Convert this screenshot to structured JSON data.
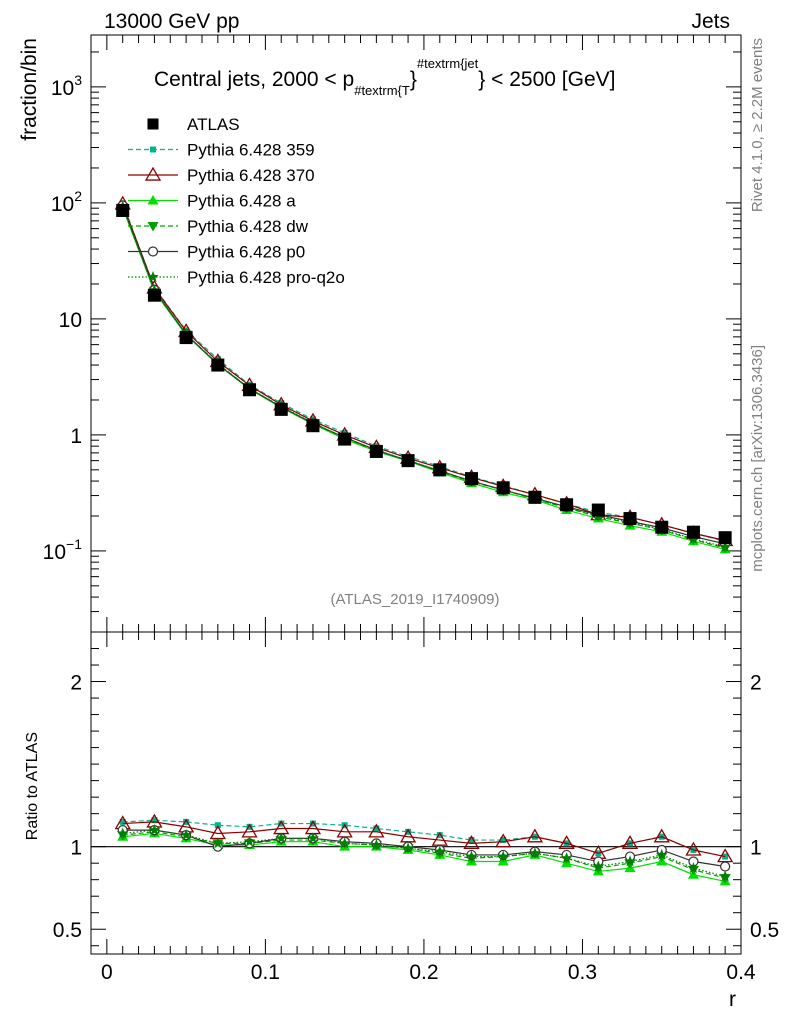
{
  "header": {
    "left": "13000 GeV pp",
    "right": "Jets"
  },
  "side_text": {
    "rivet": "Rivet 4.1.0, ≥ 2.2M events",
    "mcplots": "mcplots.cern.ch [arXiv:1306.3436]"
  },
  "analysis_id": "(ATLAS_2019_I1740909)",
  "colors": {
    "atlas": "#000000",
    "p359": "#00b58b",
    "p370": "#8b0000",
    "pa": "#00e000",
    "pdw": "#00a000",
    "pp0": "#333333",
    "pq2o": "#008000"
  },
  "chart_data": [
    {
      "type": "line",
      "title_parts": {
        "main": "Central jets, 2000 < p",
        "sub": "#textrm{T",
        "sup": "#textrm{jet",
        "post": "} < 2500 [GeV]"
      },
      "brace": "}",
      "xlabel": "r",
      "ylabel": "fraction/bin",
      "yscale": "log",
      "xlim": [
        -0.01,
        0.4
      ],
      "ylim": [
        0.02,
        2800
      ],
      "yticks": [
        {
          "v": 1000,
          "b": "10",
          "e": "3"
        },
        {
          "v": 100,
          "b": "10",
          "e": "2"
        },
        {
          "v": 10,
          "b": "10",
          "e": ""
        },
        {
          "v": 1,
          "b": "1",
          "e": ""
        },
        {
          "v": 0.1,
          "b": "10",
          "e": "−1"
        }
      ],
      "x": [
        0.01,
        0.03,
        0.05,
        0.07,
        0.09,
        0.11,
        0.13,
        0.15,
        0.17,
        0.19,
        0.21,
        0.23,
        0.25,
        0.27,
        0.29,
        0.31,
        0.33,
        0.35,
        0.37,
        0.39
      ],
      "series": [
        {
          "key": "atlas",
          "name": "ATLAS",
          "values": [
            86,
            16,
            6.9,
            4.0,
            2.45,
            1.66,
            1.2,
            0.92,
            0.72,
            0.6,
            0.5,
            0.42,
            0.35,
            0.29,
            0.25,
            0.225,
            0.19,
            0.16,
            0.145,
            0.13
          ]
        },
        {
          "key": "p359",
          "name": "Pythia 6.428 359",
          "values": [
            99,
            18.6,
            7.95,
            4.5,
            2.7,
            1.88,
            1.36,
            1.04,
            0.8,
            0.65,
            0.535,
            0.435,
            0.365,
            0.305,
            0.255,
            0.215,
            0.195,
            0.168,
            0.142,
            0.121
          ]
        },
        {
          "key": "p370",
          "name": "Pythia 6.428 370",
          "values": [
            98,
            18.5,
            7.8,
            4.3,
            2.67,
            1.82,
            1.32,
            1.0,
            0.78,
            0.63,
            0.52,
            0.43,
            0.36,
            0.305,
            0.255,
            0.205,
            0.195,
            0.168,
            0.142,
            0.123
          ]
        },
        {
          "key": "pa",
          "name": "Pythia 6.428 a",
          "values": [
            91,
            17.2,
            7.25,
            4.05,
            2.48,
            1.72,
            1.24,
            0.92,
            0.72,
            0.595,
            0.475,
            0.385,
            0.32,
            0.275,
            0.225,
            0.19,
            0.165,
            0.146,
            0.121,
            0.103
          ]
        },
        {
          "key": "pdw",
          "name": "Pythia 6.428 dw",
          "values": [
            92,
            17.4,
            7.35,
            4.1,
            2.51,
            1.74,
            1.26,
            0.94,
            0.73,
            0.6,
            0.485,
            0.395,
            0.335,
            0.28,
            0.235,
            0.197,
            0.173,
            0.152,
            0.125,
            0.106
          ]
        },
        {
          "key": "pp0",
          "name": "Pythia 6.428 p0",
          "values": [
            95,
            17.8,
            7.35,
            4.05,
            2.5,
            1.74,
            1.26,
            0.95,
            0.74,
            0.6,
            0.49,
            0.4,
            0.335,
            0.285,
            0.24,
            0.205,
            0.18,
            0.158,
            0.133,
            0.115
          ]
        },
        {
          "key": "pq2o",
          "name": "Pythia 6.428 pro-q2o",
          "values": [
            93,
            17.6,
            7.4,
            4.1,
            2.52,
            1.76,
            1.27,
            0.95,
            0.74,
            0.605,
            0.49,
            0.4,
            0.337,
            0.282,
            0.237,
            0.2,
            0.176,
            0.153,
            0.127,
            0.108
          ]
        }
      ]
    },
    {
      "type": "line",
      "ylabel": "Ratio to ATLAS",
      "xlabel": "r",
      "ylim": [
        0.35,
        2.3
      ],
      "yticks": [
        {
          "v": 0.5,
          "label": "0.5"
        },
        {
          "v": 1,
          "label": "1"
        },
        {
          "v": 2,
          "label": "2"
        }
      ],
      "xticks": [
        {
          "v": 0,
          "label": "0"
        },
        {
          "v": 0.1,
          "label": "0.1"
        },
        {
          "v": 0.2,
          "label": "0.2"
        },
        {
          "v": 0.3,
          "label": "0.3"
        },
        {
          "v": 0.4,
          "label": "0.4"
        }
      ],
      "x": [
        0.01,
        0.03,
        0.05,
        0.07,
        0.09,
        0.11,
        0.13,
        0.15,
        0.17,
        0.19,
        0.21,
        0.23,
        0.25,
        0.27,
        0.29,
        0.31,
        0.33,
        0.35,
        0.37,
        0.39
      ],
      "series": [
        {
          "key": "p359",
          "name": "Pythia 6.428 359",
          "values": [
            1.15,
            1.16,
            1.15,
            1.13,
            1.12,
            1.14,
            1.14,
            1.13,
            1.11,
            1.09,
            1.07,
            1.04,
            1.04,
            1.06,
            1.02,
            0.96,
            1.02,
            1.06,
            0.98,
            0.94
          ]
        },
        {
          "key": "p370",
          "name": "Pythia 6.428 370",
          "values": [
            1.14,
            1.15,
            1.12,
            1.08,
            1.09,
            1.11,
            1.11,
            1.09,
            1.09,
            1.06,
            1.04,
            1.02,
            1.03,
            1.06,
            1.02,
            0.96,
            1.02,
            1.06,
            0.98,
            0.94
          ]
        },
        {
          "key": "pa",
          "name": "Pythia 6.428 a",
          "values": [
            1.06,
            1.08,
            1.05,
            1.01,
            1.01,
            1.03,
            1.03,
            1.0,
            1.0,
            0.98,
            0.95,
            0.91,
            0.91,
            0.95,
            0.9,
            0.85,
            0.87,
            0.91,
            0.83,
            0.79
          ]
        },
        {
          "key": "pdw",
          "name": "Pythia 6.428 dw",
          "values": [
            1.07,
            1.09,
            1.06,
            1.02,
            1.02,
            1.04,
            1.04,
            1.02,
            1.01,
            0.99,
            0.96,
            0.93,
            0.94,
            0.96,
            0.93,
            0.87,
            0.9,
            0.94,
            0.86,
            0.81
          ]
        },
        {
          "key": "pp0",
          "name": "Pythia 6.428 p0",
          "values": [
            1.1,
            1.1,
            1.07,
            1.0,
            1.02,
            1.05,
            1.05,
            1.03,
            1.02,
            1.0,
            0.98,
            0.95,
            0.95,
            0.97,
            0.95,
            0.91,
            0.94,
            0.98,
            0.91,
            0.88
          ]
        },
        {
          "key": "pq2o",
          "name": "Pythia 6.428 pro-q2o",
          "values": [
            1.08,
            1.1,
            1.07,
            1.02,
            1.03,
            1.05,
            1.05,
            1.02,
            1.01,
            0.99,
            0.97,
            0.94,
            0.94,
            0.96,
            0.93,
            0.88,
            0.91,
            0.95,
            0.87,
            0.82
          ]
        }
      ]
    }
  ]
}
